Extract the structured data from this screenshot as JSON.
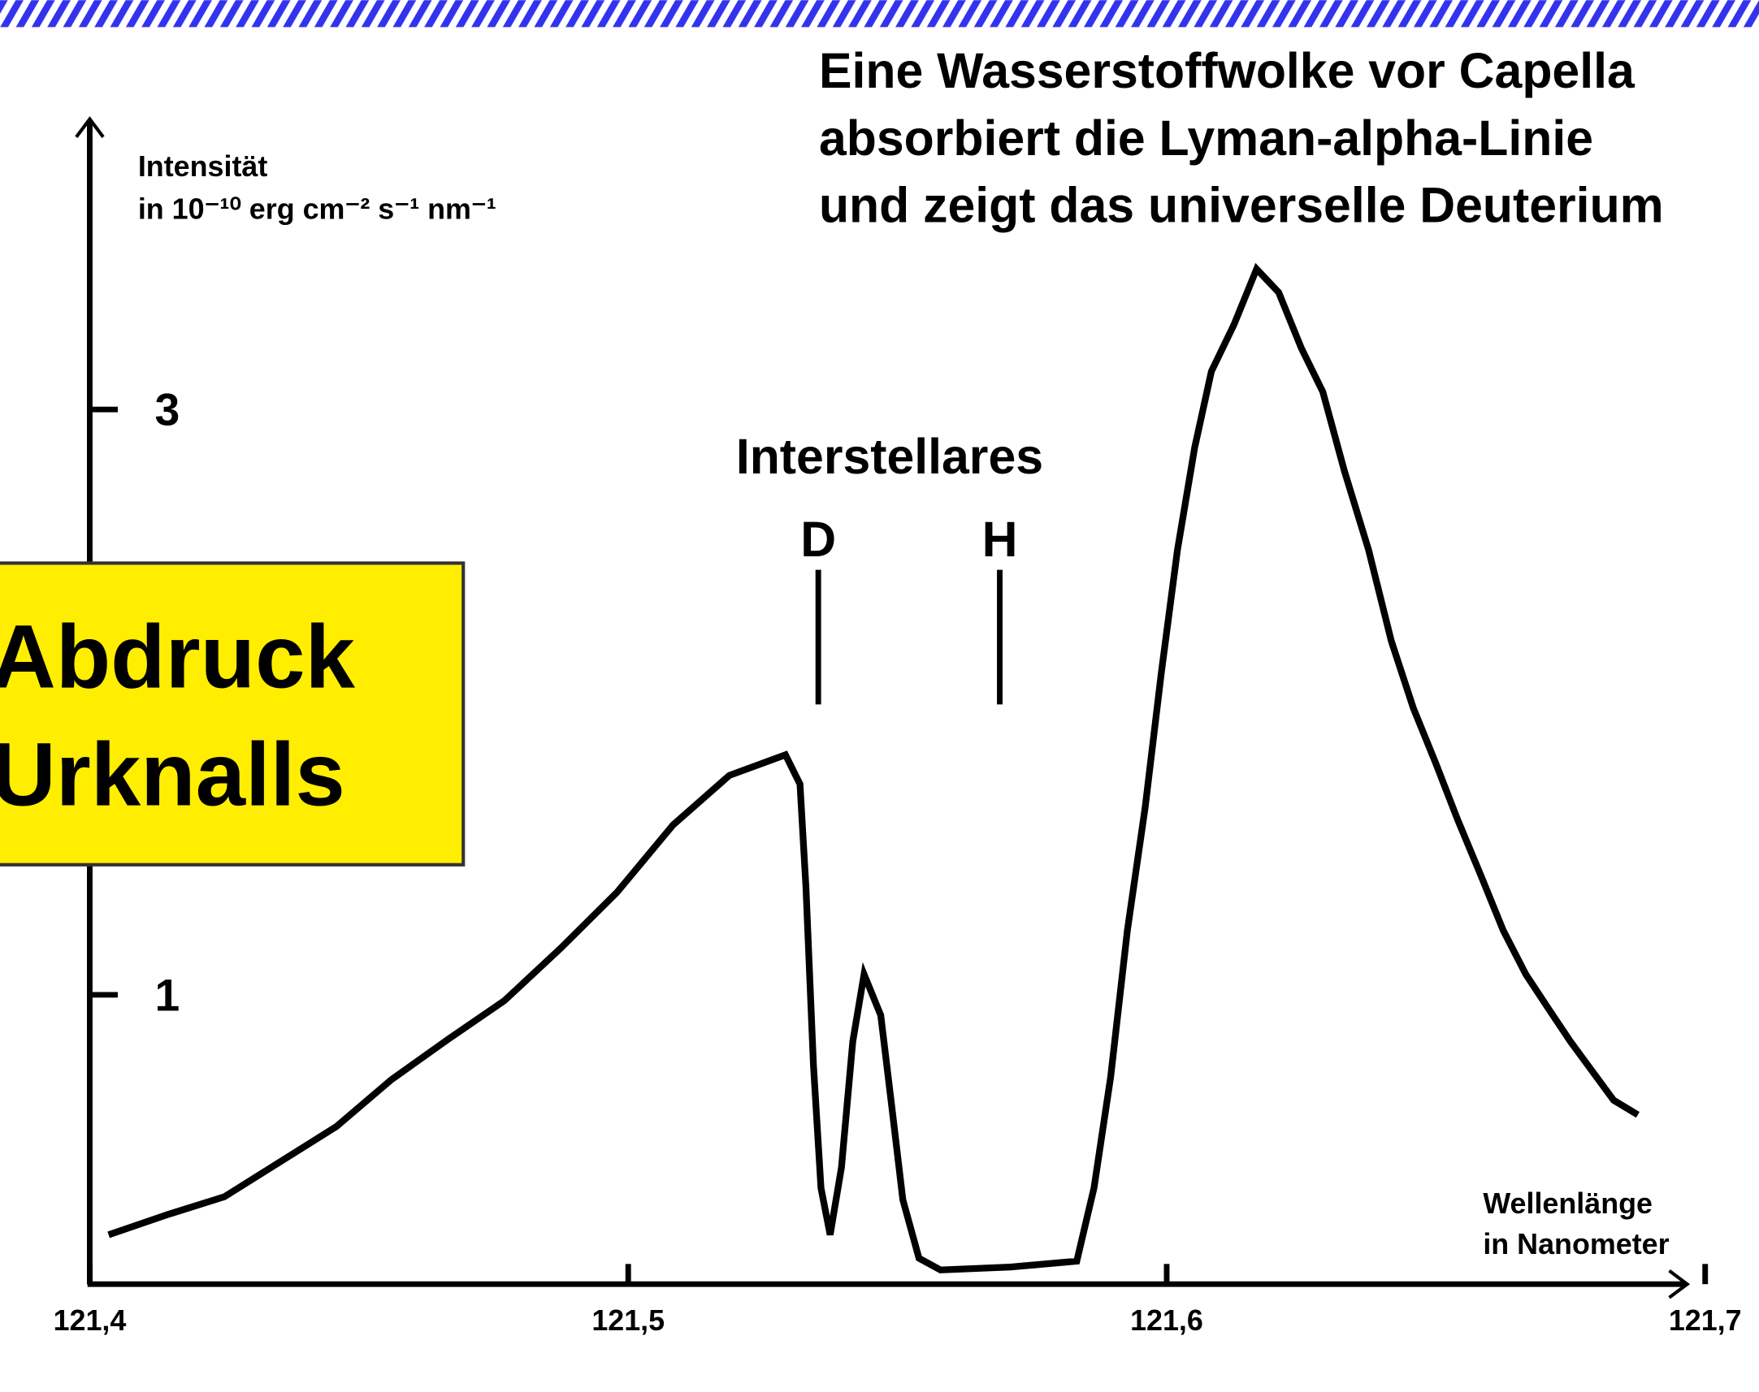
{
  "chart_data": {
    "type": "line",
    "title": [
      "Eine Wasserstoffwolke vor Capella",
      "absorbiert die Lyman-alpha-Linie",
      "und zeigt das universelle Deuterium"
    ],
    "y_label": [
      "Intensität",
      "in 10⁻¹⁰ erg cm⁻² s⁻¹ nm⁻¹"
    ],
    "x_label": [
      "Wellenlänge",
      "in Nanometer"
    ],
    "box_text": [
      "Abdruck",
      "Urknalls"
    ],
    "annotation_title": "Interstellares",
    "annotations": [
      {
        "text": "D",
        "x": 121.5353
      },
      {
        "text": "H",
        "x": 121.569
      }
    ],
    "xlim": [
      121.4,
      121.7
    ],
    "xticks": [
      {
        "value": 121.4,
        "label": "121,4"
      },
      {
        "value": 121.5,
        "label": "121,5"
      },
      {
        "value": 121.6,
        "label": "121,6"
      },
      {
        "value": 121.7,
        "label": "121,7"
      }
    ],
    "ylim": [
      0,
      4
    ],
    "yticks": [
      1,
      3
    ],
    "series": [
      {
        "color": "#000000",
        "x": [
          121.4035,
          121.4146,
          121.425,
          121.4354,
          121.4458,
          121.456,
          121.4667,
          121.477,
          121.4875,
          121.4979,
          121.5083,
          121.5188,
          121.5292,
          121.5319,
          121.533,
          121.5344,
          121.5358,
          121.5375,
          121.5396,
          121.5417,
          121.5438,
          121.5469,
          121.549,
          121.551,
          121.554,
          121.558,
          121.571,
          121.5833,
          121.5865,
          121.5896,
          121.5927,
          121.596,
          121.599,
          121.602,
          121.6052,
          121.6083,
          121.6125,
          121.6167,
          121.6208,
          121.625,
          121.629,
          121.633,
          121.6375,
          121.6417,
          121.6458,
          121.65,
          121.654,
          121.6583,
          121.6625,
          121.6667,
          121.671,
          121.675,
          121.679,
          121.683,
          121.6875
        ],
        "values": [
          0.18,
          0.25,
          0.31,
          0.43,
          0.55,
          0.71,
          0.85,
          0.98,
          1.16,
          1.35,
          1.58,
          1.75,
          1.82,
          1.72,
          1.37,
          0.76,
          0.34,
          0.18,
          0.41,
          0.84,
          1.07,
          0.93,
          0.61,
          0.3,
          0.1,
          0.06,
          0.07,
          0.09,
          0.34,
          0.72,
          1.22,
          1.64,
          2.1,
          2.52,
          2.87,
          3.13,
          3.29,
          3.48,
          3.4,
          3.21,
          3.06,
          2.79,
          2.52,
          2.21,
          1.98,
          1.79,
          1.6,
          1.41,
          1.22,
          1.07,
          0.95,
          0.84,
          0.74,
          0.64,
          0.59
        ]
      }
    ]
  }
}
